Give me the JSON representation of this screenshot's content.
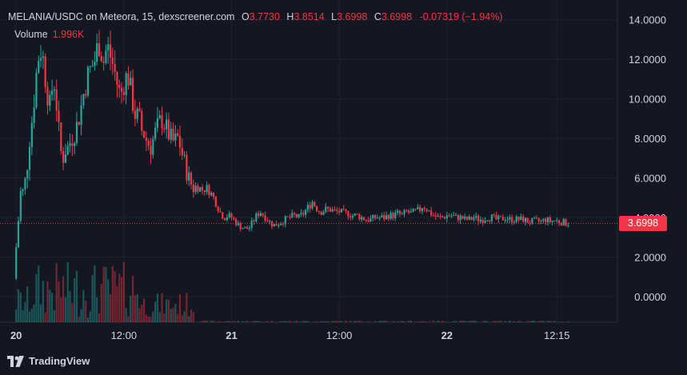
{
  "header": {
    "symbol": "MELANIA/USDC on Meteora, 15, dexscreener.com",
    "o_label": "O",
    "o_value": "3.7730",
    "h_label": "H",
    "h_value": "3.8514",
    "l_label": "L",
    "l_value": "3.6998",
    "c_label": "C",
    "c_value": "3.6998",
    "change": "-0.07319 (−1.94%)",
    "volume_label": "Volume",
    "volume_value": "1.996K"
  },
  "current_price": "3.6998",
  "footer": {
    "brand": "TradingView",
    "logo_icon": "tradingview-logo-icon"
  },
  "colors": {
    "up": "#26a69a",
    "down": "#f23645",
    "bg": "#131722",
    "grid": "#1f2330",
    "text": "#d1d4dc"
  },
  "chart_data": {
    "type": "candlestick",
    "y_ticks": [
      "14.0000",
      "12.0000",
      "10.0000",
      "8.0000",
      "6.0000",
      "4.0000",
      "2.0000",
      "0.0000"
    ],
    "ylim": [
      -1.3,
      15.0
    ],
    "x_ticks": [
      {
        "label": "20",
        "t": 0,
        "bold": true
      },
      {
        "label": "12:00",
        "t": 12,
        "bold": false
      },
      {
        "label": "21",
        "t": 24,
        "bold": true
      },
      {
        "label": "12:00",
        "t": 36,
        "bold": false
      },
      {
        "label": "22",
        "t": 48,
        "bold": true
      },
      {
        "label": "12:15",
        "t": 60.25,
        "bold": false
      }
    ],
    "x_range_hours": [
      -1.8,
      67
    ],
    "close_path_hours": [
      [
        0.0,
        2.5
      ],
      [
        0.2,
        3.5
      ],
      [
        0.4,
        5.0
      ],
      [
        0.6,
        5.5
      ],
      [
        0.8,
        5.2
      ],
      [
        1.0,
        5.8
      ],
      [
        1.2,
        6.5
      ],
      [
        1.4,
        7.5
      ],
      [
        1.6,
        8.5
      ],
      [
        1.8,
        9.0
      ],
      [
        2.0,
        10.0
      ],
      [
        2.2,
        11.0
      ],
      [
        2.4,
        12.0
      ],
      [
        2.6,
        12.3
      ],
      [
        2.8,
        12.5
      ],
      [
        3.0,
        12.0
      ],
      [
        3.2,
        11.3
      ],
      [
        3.4,
        10.5
      ],
      [
        3.6,
        10.0
      ],
      [
        3.8,
        9.5
      ],
      [
        4.0,
        10.5
      ],
      [
        4.2,
        11.0
      ],
      [
        4.4,
        10.2
      ],
      [
        4.6,
        9.2
      ],
      [
        4.8,
        8.0
      ],
      [
        5.0,
        7.3
      ],
      [
        5.2,
        7.0
      ],
      [
        5.4,
        7.3
      ],
      [
        5.6,
        7.6
      ],
      [
        5.8,
        7.5
      ],
      [
        6.0,
        7.8
      ],
      [
        6.4,
        8.2
      ],
      [
        6.8,
        8.7
      ],
      [
        7.2,
        9.5
      ],
      [
        7.6,
        10.5
      ],
      [
        8.0,
        11.2
      ],
      [
        8.4,
        11.6
      ],
      [
        8.8,
        12.0
      ],
      [
        9.0,
        12.5
      ],
      [
        9.2,
        12.9
      ],
      [
        9.4,
        12.5
      ],
      [
        9.6,
        12.2
      ],
      [
        9.8,
        11.8
      ],
      [
        10.0,
        12.4
      ],
      [
        10.2,
        12.6
      ],
      [
        10.4,
        12.3
      ],
      [
        10.6,
        12.0
      ],
      [
        10.8,
        11.7
      ],
      [
        11.0,
        11.3
      ],
      [
        11.2,
        10.9
      ],
      [
        11.4,
        10.5
      ],
      [
        11.6,
        10.2
      ],
      [
        11.8,
        10.4
      ],
      [
        12.0,
        10.8
      ],
      [
        12.2,
        11.0
      ],
      [
        12.4,
        11.3
      ],
      [
        12.6,
        10.9
      ],
      [
        12.8,
        10.3
      ],
      [
        13.0,
        9.8
      ],
      [
        13.2,
        9.3
      ],
      [
        13.4,
        9.0
      ],
      [
        13.6,
        9.2
      ],
      [
        13.8,
        8.8
      ],
      [
        14.0,
        8.4
      ],
      [
        14.3,
        8.2
      ],
      [
        14.6,
        7.8
      ],
      [
        15.0,
        7.6
      ],
      [
        15.3,
        8.0
      ],
      [
        15.6,
        8.4
      ],
      [
        16.0,
        8.8
      ],
      [
        16.3,
        9.0
      ],
      [
        16.6,
        8.6
      ],
      [
        17.0,
        8.2
      ],
      [
        17.3,
        7.9
      ],
      [
        17.6,
        7.8
      ],
      [
        18.0,
        8.0
      ],
      [
        18.3,
        7.6
      ],
      [
        18.6,
        7.0
      ],
      [
        18.9,
        6.5
      ],
      [
        19.2,
        6.0
      ],
      [
        19.5,
        5.7
      ],
      [
        19.8,
        5.5
      ],
      [
        20.1,
        5.6
      ],
      [
        20.4,
        5.5
      ],
      [
        20.8,
        5.4
      ],
      [
        21.2,
        5.5
      ],
      [
        21.6,
        5.3
      ],
      [
        22.0,
        5.0
      ],
      [
        22.4,
        4.6
      ],
      [
        22.8,
        4.2
      ],
      [
        23.2,
        4.0
      ],
      [
        23.6,
        4.1
      ],
      [
        24.0,
        4.0
      ],
      [
        24.4,
        3.8
      ],
      [
        24.8,
        3.6
      ],
      [
        25.2,
        3.5
      ],
      [
        25.6,
        3.4
      ],
      [
        26.0,
        3.5
      ],
      [
        26.4,
        3.8
      ],
      [
        26.8,
        4.1
      ],
      [
        27.2,
        4.3
      ],
      [
        27.6,
        4.1
      ],
      [
        28.0,
        3.9
      ],
      [
        28.4,
        3.7
      ],
      [
        28.8,
        3.6
      ],
      [
        29.2,
        3.7
      ],
      [
        29.6,
        3.8
      ],
      [
        30.0,
        3.9
      ],
      [
        30.5,
        4.0
      ],
      [
        31.0,
        4.1
      ],
      [
        31.5,
        4.0
      ],
      [
        32.0,
        4.2
      ],
      [
        32.5,
        4.5
      ],
      [
        33.0,
        4.8
      ],
      [
        33.3,
        4.6
      ],
      [
        33.6,
        4.4
      ],
      [
        34.0,
        4.3
      ],
      [
        34.5,
        4.4
      ],
      [
        35.0,
        4.4
      ],
      [
        35.5,
        4.3
      ],
      [
        36.0,
        4.3
      ],
      [
        36.5,
        4.2
      ],
      [
        37.0,
        4.2
      ],
      [
        37.5,
        4.1
      ],
      [
        38.0,
        4.1
      ],
      [
        38.5,
        4.0
      ],
      [
        39.0,
        3.9
      ],
      [
        39.5,
        3.9
      ],
      [
        40.0,
        4.0
      ],
      [
        40.5,
        4.0
      ],
      [
        41.0,
        4.0
      ],
      [
        41.5,
        4.1
      ],
      [
        42.0,
        4.1
      ],
      [
        42.5,
        4.2
      ],
      [
        43.0,
        4.1
      ],
      [
        43.5,
        4.3
      ],
      [
        44.0,
        4.2
      ],
      [
        44.5,
        4.3
      ],
      [
        45.0,
        4.4
      ],
      [
        45.3,
        4.6
      ],
      [
        45.6,
        4.5
      ],
      [
        46.0,
        4.3
      ],
      [
        46.5,
        4.1
      ],
      [
        47.0,
        4.0
      ],
      [
        47.5,
        4.0
      ],
      [
        48.0,
        4.1
      ],
      [
        48.5,
        4.1
      ],
      [
        49.0,
        4.0
      ],
      [
        49.5,
        4.0
      ],
      [
        50.0,
        3.9
      ],
      [
        50.5,
        3.9
      ],
      [
        51.0,
        4.0
      ],
      [
        51.5,
        3.9
      ],
      [
        52.0,
        3.9
      ],
      [
        52.5,
        4.0
      ],
      [
        53.0,
        4.0
      ],
      [
        53.5,
        3.9
      ],
      [
        54.0,
        3.9
      ],
      [
        54.5,
        4.0
      ],
      [
        55.0,
        3.9
      ],
      [
        55.5,
        3.9
      ],
      [
        56.0,
        3.9
      ],
      [
        56.5,
        3.9
      ],
      [
        57.0,
        3.8
      ],
      [
        57.5,
        3.8
      ],
      [
        58.0,
        3.8
      ],
      [
        58.5,
        3.8
      ],
      [
        59.0,
        3.9
      ],
      [
        59.5,
        3.8
      ],
      [
        60.0,
        3.85
      ],
      [
        60.5,
        3.8
      ],
      [
        61.0,
        3.75
      ],
      [
        61.5,
        3.7
      ]
    ]
  }
}
